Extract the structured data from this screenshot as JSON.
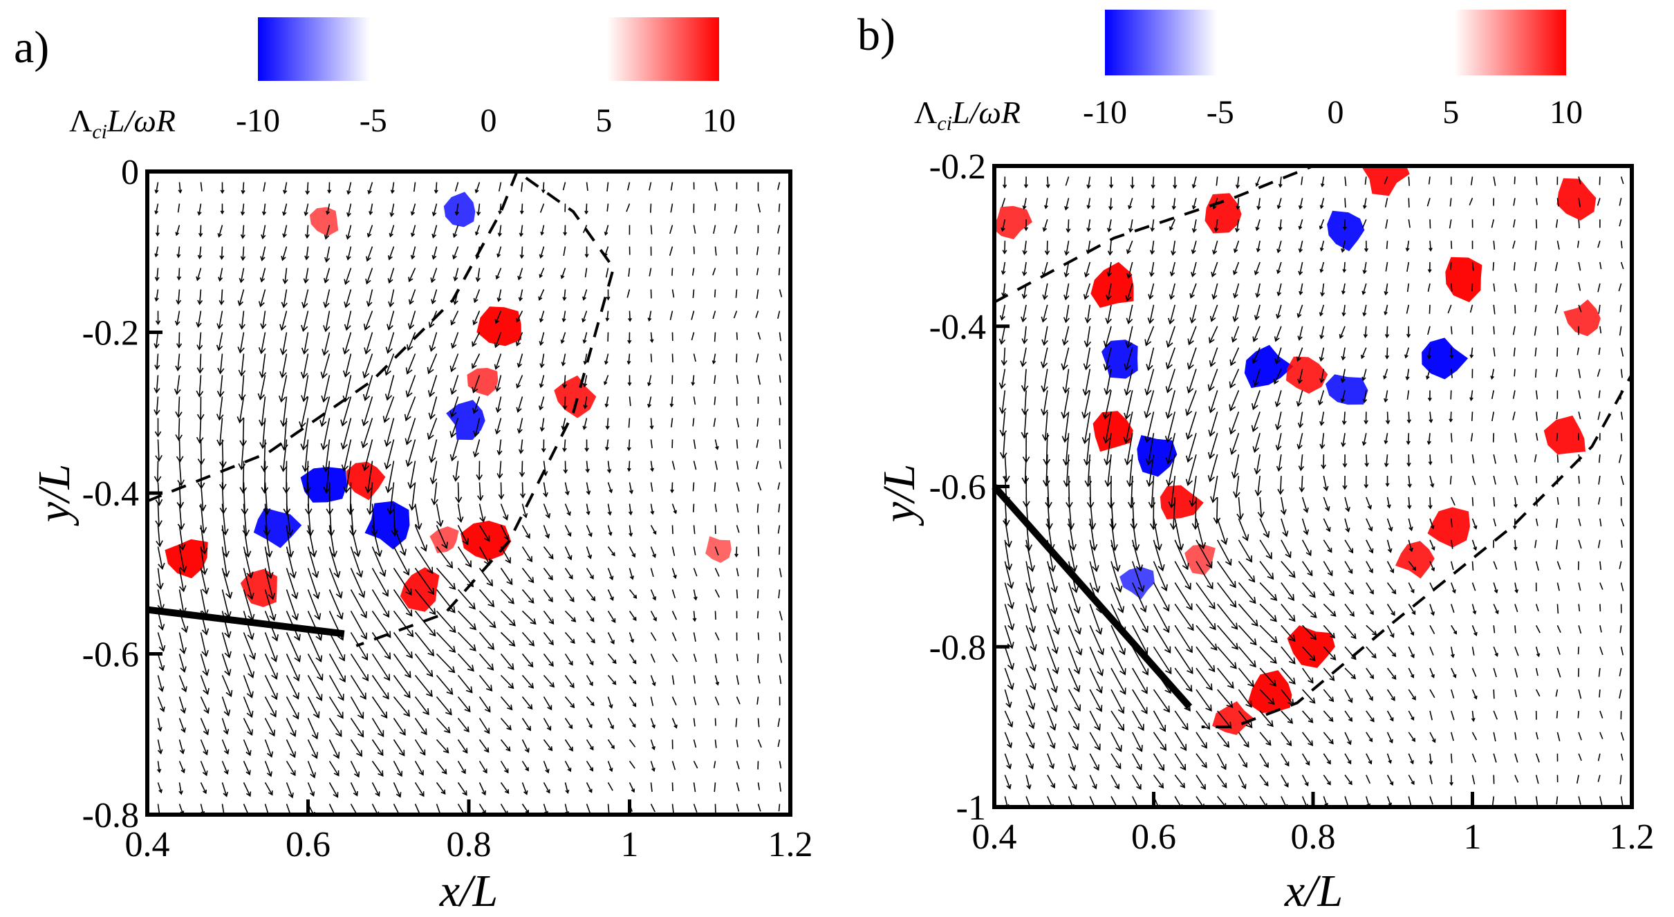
{
  "chart_data": [
    {
      "type": "vector-field",
      "panel_label": "a)",
      "xlabel": "x/L",
      "ylabel": "y/L",
      "xlim": [
        0.4,
        1.2
      ],
      "ylim": [
        -0.8,
        0
      ],
      "xticks": [
        "0.4",
        "0.6",
        "0.8",
        "1",
        "1.2"
      ],
      "yticks": [
        "0",
        "-0.2",
        "-0.4",
        "-0.6",
        "-0.8"
      ],
      "xtick_values": [
        0.4,
        0.6,
        0.8,
        1.0,
        1.2
      ],
      "ytick_values": [
        0,
        -0.2,
        -0.4,
        -0.6,
        -0.8
      ],
      "colorbar": {
        "title": "ΛciL/ωR",
        "title_parts": [
          "Λ",
          "ci",
          "L/ωR"
        ],
        "range": [
          -10,
          10
        ],
        "ticks": [
          "-10",
          "-5",
          "0",
          "5",
          "10"
        ],
        "tick_values": [
          -10,
          -5,
          0,
          5,
          10
        ],
        "negative_color": "#0000ff",
        "positive_color": "#ff0000"
      },
      "blade_line": [
        [
          0.4,
          -0.545
        ],
        [
          0.645,
          -0.575
        ]
      ],
      "dashed_boundary": [
        [
          0.4,
          -0.41
        ],
        [
          0.55,
          -0.35
        ],
        [
          0.68,
          -0.26
        ],
        [
          0.78,
          -0.16
        ],
        [
          0.84,
          -0.05
        ],
        [
          0.86,
          0
        ],
        [
          0.93,
          -0.05
        ],
        [
          0.98,
          -0.12
        ],
        [
          0.93,
          -0.3
        ],
        [
          0.85,
          -0.46
        ],
        [
          0.77,
          -0.55
        ],
        [
          0.66,
          -0.59
        ]
      ],
      "vortex_core_center": [
        0.7,
        -0.43
      ],
      "swirl_patches": [
        {
          "x": 0.45,
          "y": -0.48,
          "value": 10
        },
        {
          "x": 0.54,
          "y": -0.52,
          "value": 8
        },
        {
          "x": 0.56,
          "y": -0.44,
          "value": -9
        },
        {
          "x": 0.62,
          "y": -0.39,
          "value": -10
        },
        {
          "x": 0.7,
          "y": -0.44,
          "value": -10
        },
        {
          "x": 0.74,
          "y": -0.52,
          "value": 9
        },
        {
          "x": 0.67,
          "y": -0.38,
          "value": 9
        },
        {
          "x": 0.82,
          "y": -0.46,
          "value": 10
        },
        {
          "x": 0.8,
          "y": -0.31,
          "value": -8
        },
        {
          "x": 0.84,
          "y": -0.19,
          "value": 10
        },
        {
          "x": 0.82,
          "y": -0.26,
          "value": 6
        },
        {
          "x": 0.93,
          "y": -0.28,
          "value": 8
        },
        {
          "x": 0.79,
          "y": -0.05,
          "value": -7
        },
        {
          "x": 0.62,
          "y": -0.06,
          "value": 5
        },
        {
          "x": 1.11,
          "y": -0.47,
          "value": 4
        },
        {
          "x": 0.77,
          "y": -0.46,
          "value": 5
        }
      ]
    },
    {
      "type": "vector-field",
      "panel_label": "b)",
      "xlabel": "x/L",
      "ylabel": "y/L",
      "xlim": [
        0.4,
        1.2
      ],
      "ylim": [
        -1,
        -0.2
      ],
      "xticks": [
        "0.4",
        "0.6",
        "0.8",
        "1",
        "1.2"
      ],
      "yticks": [
        "-0.2",
        "-0.4",
        "-0.6",
        "-0.8",
        "-1"
      ],
      "xtick_values": [
        0.4,
        0.6,
        0.8,
        1.0,
        1.2
      ],
      "ytick_values": [
        -0.2,
        -0.4,
        -0.6,
        -0.8,
        -1.0
      ],
      "colorbar": {
        "title": "ΛciL/ωR",
        "title_parts": [
          "Λ",
          "ci",
          "L/ωR"
        ],
        "range": [
          -10,
          10
        ],
        "ticks": [
          "-10",
          "-5",
          "0",
          "5",
          "10"
        ],
        "tick_values": [
          -10,
          -5,
          0,
          5,
          10
        ],
        "negative_color": "#0000ff",
        "positive_color": "#ff0000"
      },
      "blade_line": [
        [
          0.4,
          -0.6
        ],
        [
          0.645,
          -0.875
        ]
      ],
      "dashed_boundary": [
        [
          0.4,
          -0.37
        ],
        [
          0.55,
          -0.29
        ],
        [
          0.7,
          -0.24
        ],
        [
          0.8,
          -0.2
        ],
        [
          0.8,
          -0.2
        ],
        [
          1.2,
          -0.2
        ],
        [
          1.2,
          -0.46
        ],
        [
          1.15,
          -0.55
        ],
        [
          1.05,
          -0.65
        ],
        [
          0.9,
          -0.77
        ],
        [
          0.78,
          -0.87
        ],
        [
          0.7,
          -0.9
        ],
        [
          0.66,
          -0.9
        ]
      ],
      "vortex_core_center": [
        0.64,
        -0.64
      ],
      "swirl_patches": [
        {
          "x": 0.55,
          "y": -0.35,
          "value": 10
        },
        {
          "x": 0.55,
          "y": -0.53,
          "value": 10
        },
        {
          "x": 0.56,
          "y": -0.44,
          "value": -9
        },
        {
          "x": 0.6,
          "y": -0.56,
          "value": -10
        },
        {
          "x": 0.63,
          "y": -0.62,
          "value": 9
        },
        {
          "x": 0.69,
          "y": -0.26,
          "value": 9
        },
        {
          "x": 0.74,
          "y": -0.45,
          "value": -10
        },
        {
          "x": 0.8,
          "y": -0.8,
          "value": 10
        },
        {
          "x": 0.75,
          "y": -0.86,
          "value": 10
        },
        {
          "x": 0.7,
          "y": -0.89,
          "value": 8
        },
        {
          "x": 0.89,
          "y": -0.21,
          "value": 9
        },
        {
          "x": 0.84,
          "y": -0.28,
          "value": -9
        },
        {
          "x": 0.96,
          "y": -0.44,
          "value": -10
        },
        {
          "x": 0.99,
          "y": -0.34,
          "value": 10
        },
        {
          "x": 0.97,
          "y": -0.65,
          "value": 9
        },
        {
          "x": 0.84,
          "y": -0.48,
          "value": -8
        },
        {
          "x": 1.13,
          "y": -0.24,
          "value": 9
        },
        {
          "x": 1.12,
          "y": -0.54,
          "value": 9
        },
        {
          "x": 1.14,
          "y": -0.39,
          "value": 7
        },
        {
          "x": 0.93,
          "y": -0.69,
          "value": 8
        },
        {
          "x": 0.79,
          "y": -0.46,
          "value": 8
        },
        {
          "x": 0.42,
          "y": -0.27,
          "value": 7
        },
        {
          "x": 0.58,
          "y": -0.72,
          "value": -6
        },
        {
          "x": 0.66,
          "y": -0.69,
          "value": 5
        }
      ]
    }
  ]
}
